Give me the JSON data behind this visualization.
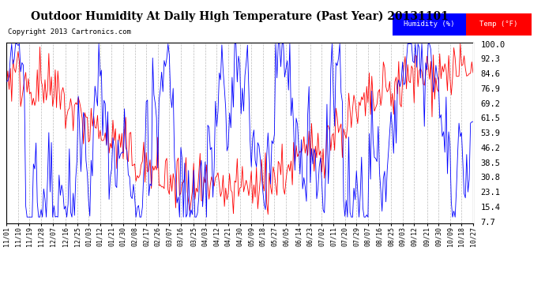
{
  "title": "Outdoor Humidity At Daily High Temperature (Past Year) 20131101",
  "copyright": "Copyright 2013 Cartronics.com",
  "ytick_labels": [
    "100.0",
    "92.3",
    "84.6",
    "76.9",
    "69.2",
    "61.5",
    "53.9",
    "46.2",
    "38.5",
    "30.8",
    "23.1",
    "15.4",
    "7.7"
  ],
  "ytick_values": [
    100.0,
    92.3,
    84.6,
    76.9,
    69.2,
    61.5,
    53.9,
    46.2,
    38.5,
    30.8,
    23.1,
    15.4,
    7.7
  ],
  "ymin": 7.7,
  "ymax": 100.0,
  "humidity_color": "#0000ff",
  "temp_color": "#ff0000",
  "bg_color": "#ffffff",
  "grid_color": "#bbbbbb",
  "title_fontsize": 10,
  "x_labels": [
    "11/01",
    "11/10",
    "11/19",
    "11/28",
    "12/07",
    "12/16",
    "12/25",
    "01/03",
    "01/12",
    "01/21",
    "01/30",
    "02/08",
    "02/17",
    "02/26",
    "03/07",
    "03/16",
    "03/25",
    "04/03",
    "04/12",
    "04/21",
    "04/30",
    "05/09",
    "05/18",
    "05/27",
    "06/05",
    "06/14",
    "06/23",
    "07/02",
    "07/11",
    "07/20",
    "07/29",
    "08/07",
    "08/16",
    "08/25",
    "09/03",
    "09/12",
    "09/21",
    "09/30",
    "10/09",
    "10/18",
    "10/27"
  ],
  "num_points": 365,
  "legend_bg_color": "#000080",
  "humidity_label": "Humidity (%)",
  "temp_label": "Temp (°F)",
  "copyright_fontsize": 6.5,
  "tick_fontsize": 7.5,
  "xtick_fontsize": 6.0
}
